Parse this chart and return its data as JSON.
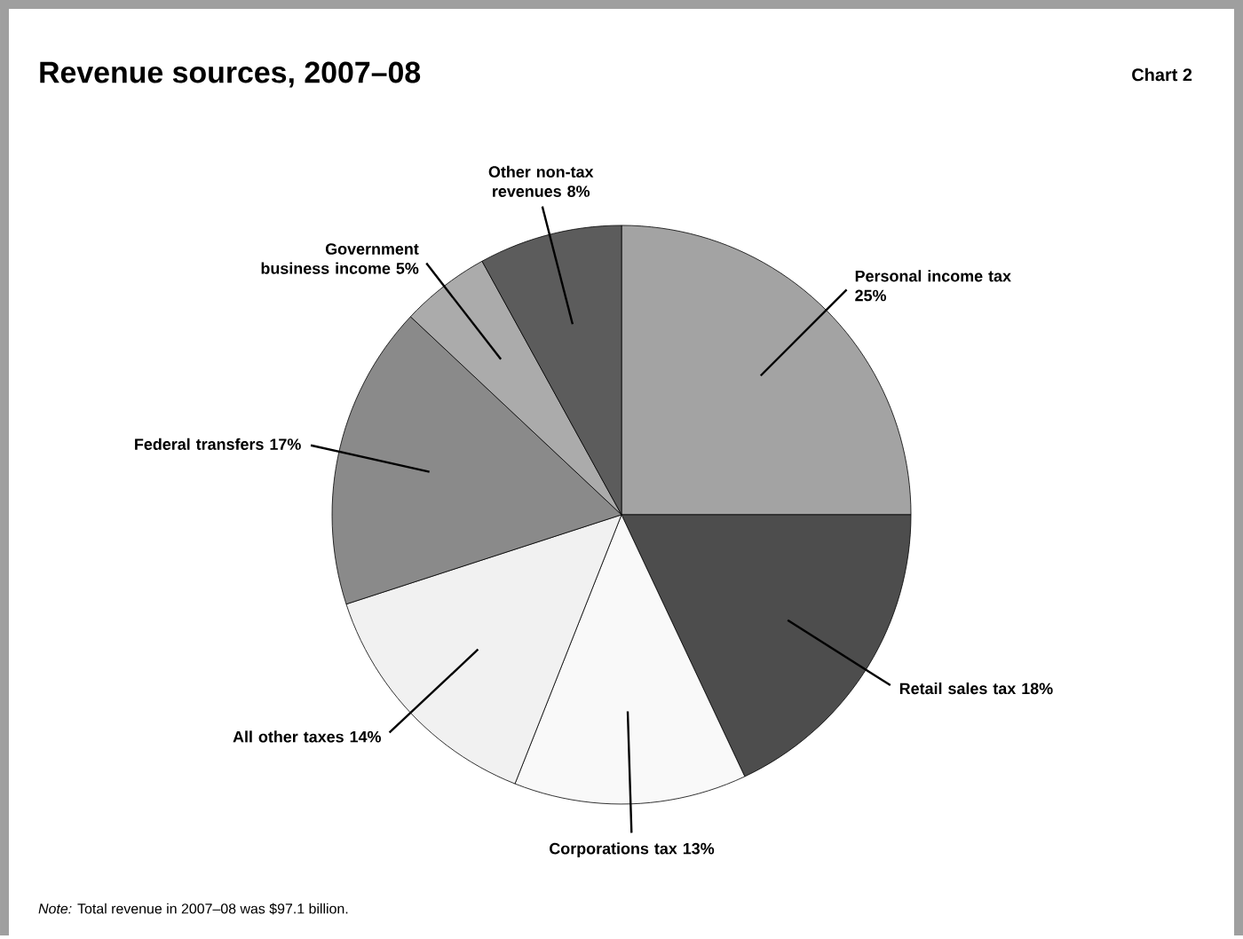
{
  "chart_data": {
    "type": "pie",
    "title": "Revenue sources, 2007–08",
    "subtitle": "Chart 2",
    "categories": [
      "Personal income tax",
      "Retail sales tax",
      "Corporations tax",
      "All other taxes",
      "Federal transfers",
      "Government business income",
      "Other non-tax revenues"
    ],
    "values": [
      25,
      18,
      13,
      14,
      17,
      5,
      8
    ],
    "value_labels": [
      "25%",
      "18%",
      "13%",
      "14%",
      "17%",
      "5%",
      "8%"
    ],
    "colors": [
      "#a3a3a3",
      "#4d4d4d",
      "#f9f9f9",
      "#f1f1f1",
      "#8a8a8a",
      "#ababab",
      "#5c5c5c"
    ],
    "annotations": [
      "*Note:* Total revenue in 2007–08 was $97.1 billion."
    ]
  }
}
